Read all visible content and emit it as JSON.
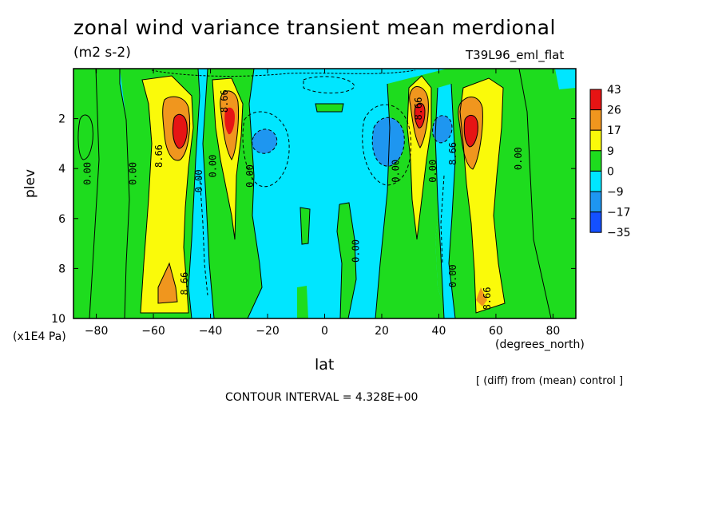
{
  "header": {
    "title": "zonal wind variance transient mean merdional",
    "units": "(m2 s-2)",
    "dataset": "T39L96_eml_flat"
  },
  "footer": {
    "diff_note": "[ (diff) from (mean) control ]",
    "contour_interval": "CONTOUR INTERVAL = 4.328E+00"
  },
  "colors": {
    "red": "#e61414",
    "orange": "#f0961e",
    "yellow": "#fafa0a",
    "green": "#1edc1e",
    "cyan": "#00e6ff",
    "blue": "#1e96f0",
    "darkblue": "#1450ff"
  },
  "chart_data": {
    "type": "heatmap",
    "title": "zonal wind variance transient mean merdional",
    "xlabel": "lat",
    "ylabel": "plev",
    "x_units": "(degrees_north)",
    "y_units": "(x1E4 Pa)",
    "xlim": [
      -88,
      88
    ],
    "ylim": [
      10,
      0
    ],
    "x_ticks": [
      -80,
      -60,
      -40,
      -20,
      0,
      20,
      40,
      60,
      80
    ],
    "y_ticks": [
      2,
      4,
      6,
      8,
      10
    ],
    "colorbar": {
      "levels": [
        "43",
        "26",
        "17",
        "9",
        "0",
        "-9",
        "-17",
        "-35"
      ],
      "colors": [
        "#e61414",
        "#f0961e",
        "#fafa0a",
        "#1edc1e",
        "#00e6ff",
        "#1e96f0",
        "#1450ff"
      ]
    },
    "contour_labels": [
      {
        "text": "0.00",
        "lat": -82,
        "plev": 4.2
      },
      {
        "text": "0.00",
        "lat": -66,
        "plev": 4.2
      },
      {
        "text": "8.66",
        "lat": -57,
        "plev": 3.5
      },
      {
        "text": "0.00",
        "lat": -43,
        "plev": 4.5
      },
      {
        "text": "0.00",
        "lat": -38,
        "plev": 3.9
      },
      {
        "text": "0.00",
        "lat": -25,
        "plev": 4.3
      },
      {
        "text": "8.66",
        "lat": -48,
        "plev": 8.6
      },
      {
        "text": "8.66",
        "lat": -34,
        "plev": 1.3
      },
      {
        "text": "0.00",
        "lat": 12,
        "plev": 7.3
      },
      {
        "text": "0.00",
        "lat": 26,
        "plev": 4.1
      },
      {
        "text": "8.66",
        "lat": 34,
        "plev": 1.6
      },
      {
        "text": "0.00",
        "lat": 39,
        "plev": 4.1
      },
      {
        "text": "0.00",
        "lat": 46,
        "plev": 8.3
      },
      {
        "text": "8.66",
        "lat": 46,
        "plev": 3.4
      },
      {
        "text": "0.00",
        "lat": 69,
        "plev": 3.6
      },
      {
        "text": "8.66",
        "lat": 58,
        "plev": 9.2
      }
    ]
  }
}
